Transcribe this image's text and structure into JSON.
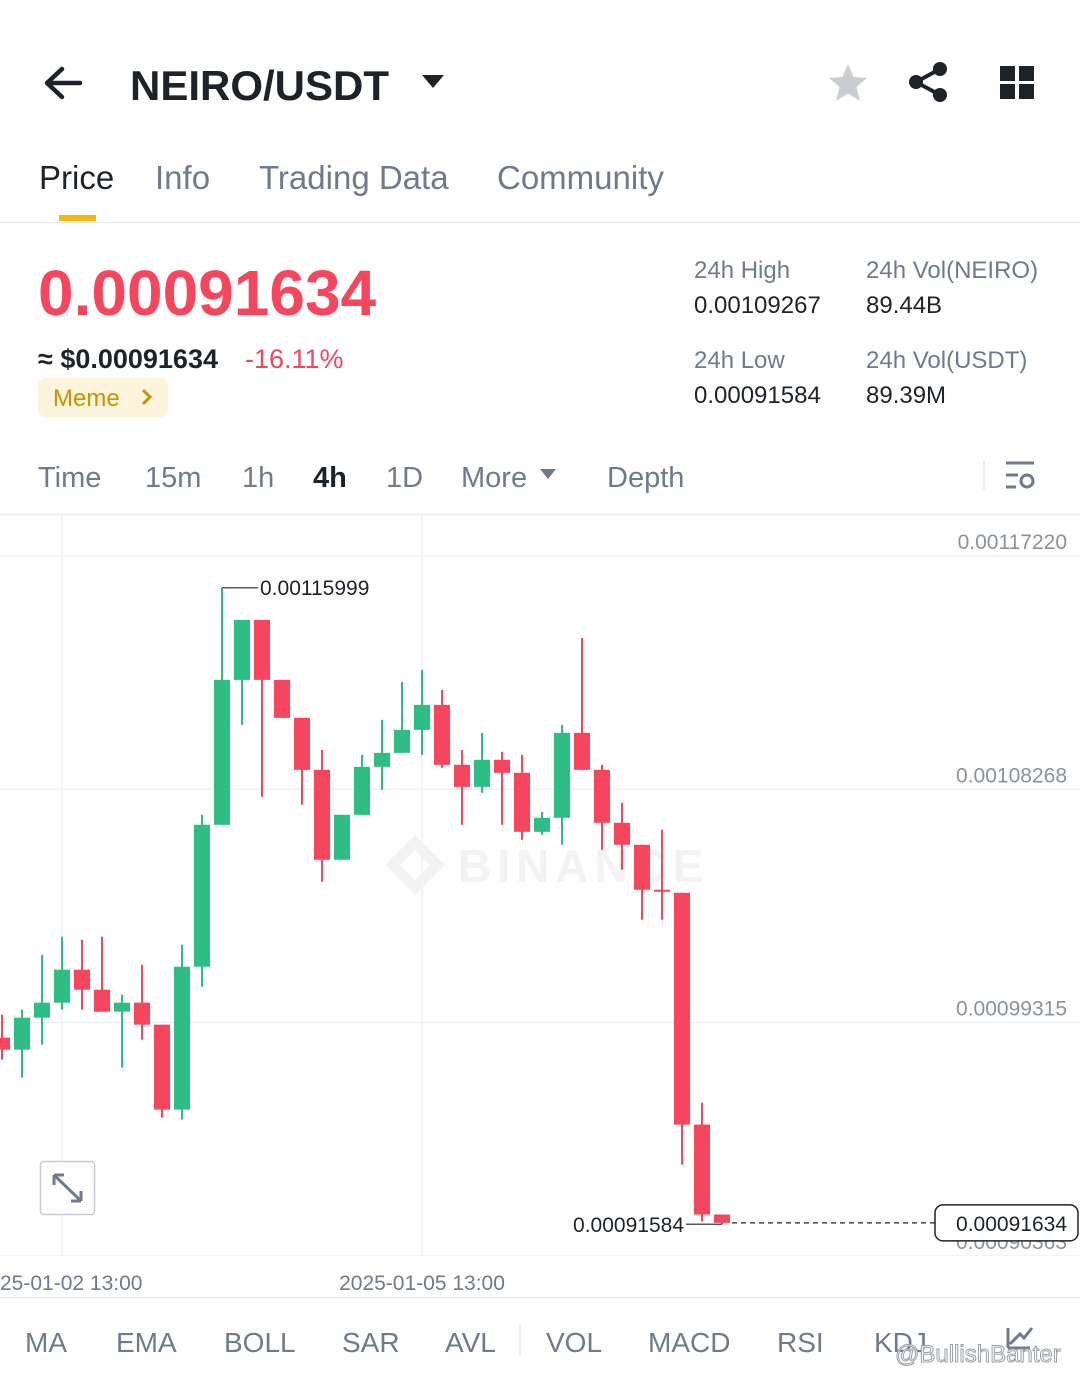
{
  "header": {
    "pair": "NEIRO/USDT"
  },
  "tabs": [
    "Price",
    "Info",
    "Trading Data",
    "Community"
  ],
  "price": {
    "last": "0.00091634",
    "usd": "≈ $0.00091634",
    "change": "-16.11%",
    "tag": "Meme"
  },
  "stats": [
    {
      "label": "24h High",
      "value": "0.00109267"
    },
    {
      "label": "24h Vol(NEIRO)",
      "value": "89.44B"
    },
    {
      "label": "24h Low",
      "value": "0.00091584"
    },
    {
      "label": "24h Vol(USDT)",
      "value": "89.39M"
    }
  ],
  "intervals": [
    "Time",
    "15m",
    "1h",
    "4h",
    "1D",
    "More",
    "Depth"
  ],
  "indicators": [
    "MA",
    "EMA",
    "BOLL",
    "SAR",
    "AVL",
    "VOL",
    "MACD",
    "RSI",
    "KDJ"
  ],
  "watermark": "@BullishBanter",
  "chart_data": {
    "type": "candlestick",
    "watermark": "BINANCE",
    "categories": [
      null,
      null,
      null,
      "25-01-02 13:00",
      null,
      null,
      null,
      null,
      null,
      null,
      null,
      null,
      null,
      null,
      null,
      null,
      null,
      null,
      null,
      null,
      null,
      "2025-01-05 13:00",
      null,
      null,
      null,
      null,
      null,
      null,
      null,
      null,
      null,
      null,
      null,
      null,
      null,
      null,
      null
    ],
    "open": [
      0.0009874,
      0.0009828,
      0.00099507,
      0.00100082,
      0.00101347,
      0.0010058,
      0.00099737,
      0.00100082,
      0.00099238,
      0.0009598,
      0.00101462,
      0.00106906,
      0.00112466,
      0.00114766,
      0.00112466,
      0.00111009,
      0.00109015,
      0.00105565,
      0.0010729,
      0.0010913,
      0.00109667,
      0.00110549,
      0.00111507,
      0.00109207,
      0.00108363,
      0.00109399,
      0.001089,
      0.00106638,
      0.00107175,
      0.00110434,
      0.00109015,
      0.00106983,
      0.0010614,
      0.00104414,
      0.00104299,
      0.00095404,
      0.00091954
    ],
    "high": [
      0.00099622,
      0.00099814,
      0.00101922,
      0.00102612,
      0.00102497,
      0.00102612,
      0.00100389,
      0.00101539,
      0.00099238,
      0.00102306,
      0.0010729,
      0.00115999,
      0.00114766,
      0.00114766,
      0.00112466,
      0.00111009,
      0.00109782,
      0.0010729,
      0.0010959,
      0.00110932,
      0.00112389,
      0.00112849,
      0.00112082,
      0.00109782,
      0.00110434,
      0.00109705,
      0.0010959,
      0.00107405,
      0.0011074,
      0.00114076,
      0.00109207,
      0.0010775,
      0.0010614,
      0.00106715,
      0.00104299,
      0.00096248,
      0.00091954
    ],
    "low": [
      0.00097897,
      0.00097206,
      0.00098472,
      0.00099814,
      0.00099814,
      0.00099737,
      0.0009759,
      0.00098663,
      0.00095673,
      0.00095596,
      0.00100695,
      0.00106906,
      0.0011074,
      0.0010798,
      0.00111009,
      0.00107673,
      0.00104721,
      0.00105565,
      0.0010729,
      0.00108248,
      0.00109667,
      0.0010959,
      0.00109092,
      0.00106906,
      0.00108133,
      0.00106906,
      0.00106331,
      0.00106523,
      0.0010614,
      0.00109015,
      0.00105948,
      0.00105181,
      0.00103264,
      0.00103264,
      0.00093871,
      0.00091686,
      0.00091584
    ],
    "close": [
      0.0009828,
      0.00099507,
      0.00100082,
      0.00101347,
      0.0010058,
      0.00099737,
      0.00100082,
      0.00099238,
      0.0009598,
      0.00101462,
      0.00106906,
      0.00112466,
      0.00114766,
      0.00112466,
      0.00111009,
      0.00109015,
      0.00105565,
      0.0010729,
      0.0010913,
      0.00109667,
      0.00110549,
      0.00111507,
      0.00109207,
      0.00108363,
      0.00109399,
      0.001089,
      0.00106638,
      0.00107175,
      0.00110434,
      0.00109015,
      0.00106983,
      0.0010614,
      0.00104414,
      0.00104338,
      0.00095404,
      0.00091954,
      0.00091634
    ],
    "up_color": "#2ebd85",
    "down_color": "#f6465d",
    "ylim": [
      0.00090363,
      0.00118792
    ],
    "yticks": [
      {
        "value": 0.0011722,
        "label": "0.00117220"
      },
      0.00108268,
      0.00099315,
      0.00090363
    ],
    "grid": true,
    "high_label": "0.00115999",
    "low_label": "0.00091584",
    "last_price_label": "0.00091634"
  }
}
